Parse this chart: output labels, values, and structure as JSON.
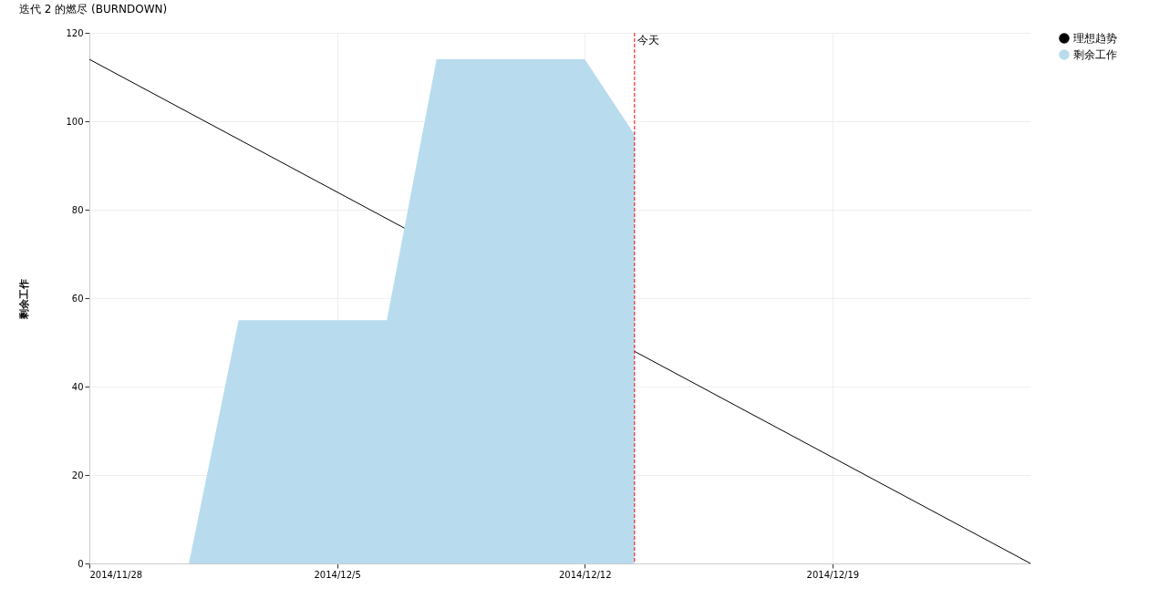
{
  "chart_data": {
    "type": "area",
    "title": "迭代 2 的燃尽 (BURNDOWN)",
    "ylabel": "剩余工作",
    "series": [
      {
        "name": "理想趋势",
        "type": "line",
        "color": "#000000",
        "x": [
          "2014-11-28T00:00",
          "2014-12-24T14:17"
        ],
        "values": [
          114,
          0
        ]
      },
      {
        "name": "剩余工作",
        "color": "#b8dcee",
        "x": [
          "2014-11-30T19:30",
          "2014-12-02T05:12",
          "2014-12-06T09:45",
          "2014-12-07T19:28",
          "2014-12-12T00:00",
          "2014-12-13T09:45"
        ],
        "values": [
          0,
          55,
          55,
          114,
          114,
          97
        ]
      }
    ],
    "xlim": [
      "2014-11-28T00:00",
      "2014-12-24T14:17"
    ],
    "xticks": [
      {
        "value": "2014-11-28",
        "label": "2014/11/28"
      },
      {
        "value": "2014-12-05",
        "label": "2014/12/5"
      },
      {
        "value": "2014-12-12",
        "label": "2014/12/12"
      },
      {
        "value": "2014-12-19",
        "label": "2014/12/19"
      }
    ],
    "ylim": [
      0,
      120
    ],
    "yticks": [
      0,
      20,
      40,
      60,
      80,
      100,
      120
    ],
    "ref_lines": [
      {
        "axis": "x",
        "value": "2014-12-13T09:45",
        "label": "今天",
        "color": "#ff0000",
        "line_style": "dashed"
      }
    ],
    "grid": true,
    "legend": "top right"
  }
}
